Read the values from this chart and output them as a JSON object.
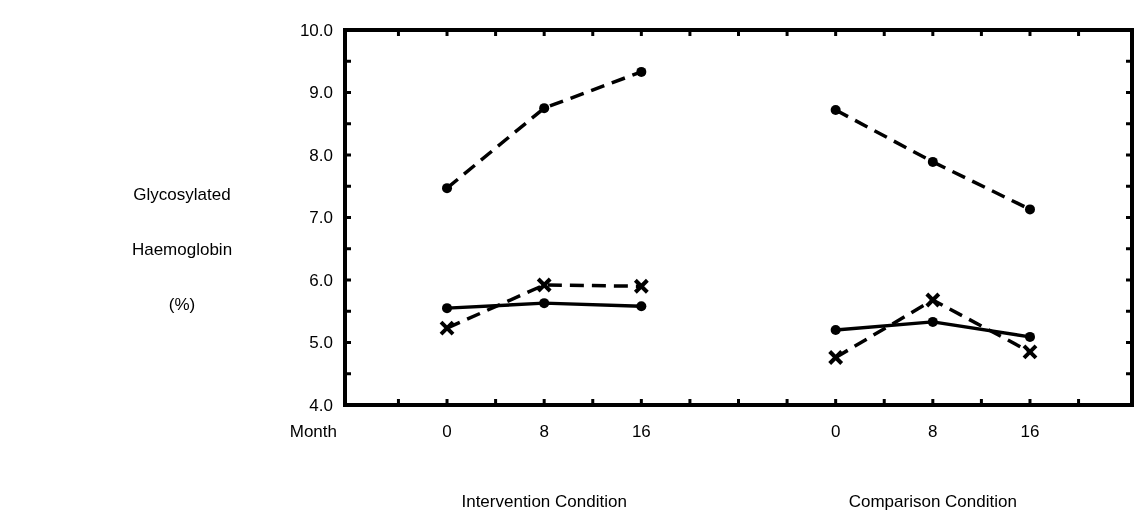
{
  "chart_data": {
    "type": "line",
    "xlabel": "Month",
    "ylabel": "Glycosylated Haemoglobin (%)",
    "categories": [
      "0",
      "8",
      "16",
      null,
      "0",
      "8",
      "16"
    ],
    "series": [
      {
        "color": "#000000",
        "marker": "circle",
        "line_style": "dashed",
        "values": [
          7.47,
          8.75,
          9.33,
          null,
          8.72,
          7.89,
          7.13
        ]
      },
      {
        "color": "#000000",
        "marker": "circle",
        "line_style": "solid",
        "values": [
          5.55,
          5.63,
          5.58,
          null,
          5.2,
          5.33,
          5.09
        ]
      },
      {
        "color": "#000000",
        "marker": "cross",
        "line_style": "dashed",
        "values": [
          5.23,
          5.92,
          5.9,
          null,
          4.76,
          5.68,
          4.85
        ]
      }
    ],
    "ylim": [
      4,
      10
    ],
    "yticks": [
      {
        "value": 4,
        "label": "4.0"
      },
      {
        "value": 4.5,
        "label": null
      },
      {
        "value": 5,
        "label": "5.0"
      },
      {
        "value": 5.5,
        "label": null
      },
      {
        "value": 6,
        "label": "6.0"
      },
      {
        "value": 6.5,
        "label": null
      },
      {
        "value": 7,
        "label": "7.0"
      },
      {
        "value": 7.5,
        "label": null
      },
      {
        "value": 8,
        "label": "8.0"
      },
      {
        "value": 8.5,
        "label": null
      },
      {
        "value": 9,
        "label": "9.0"
      },
      {
        "value": 9.5,
        "label": null
      },
      {
        "value": 10,
        "label": "10.0"
      }
    ],
    "annotations": [
      "Intervention Condition",
      "Comparison Condition"
    ],
    "grid": false
  }
}
